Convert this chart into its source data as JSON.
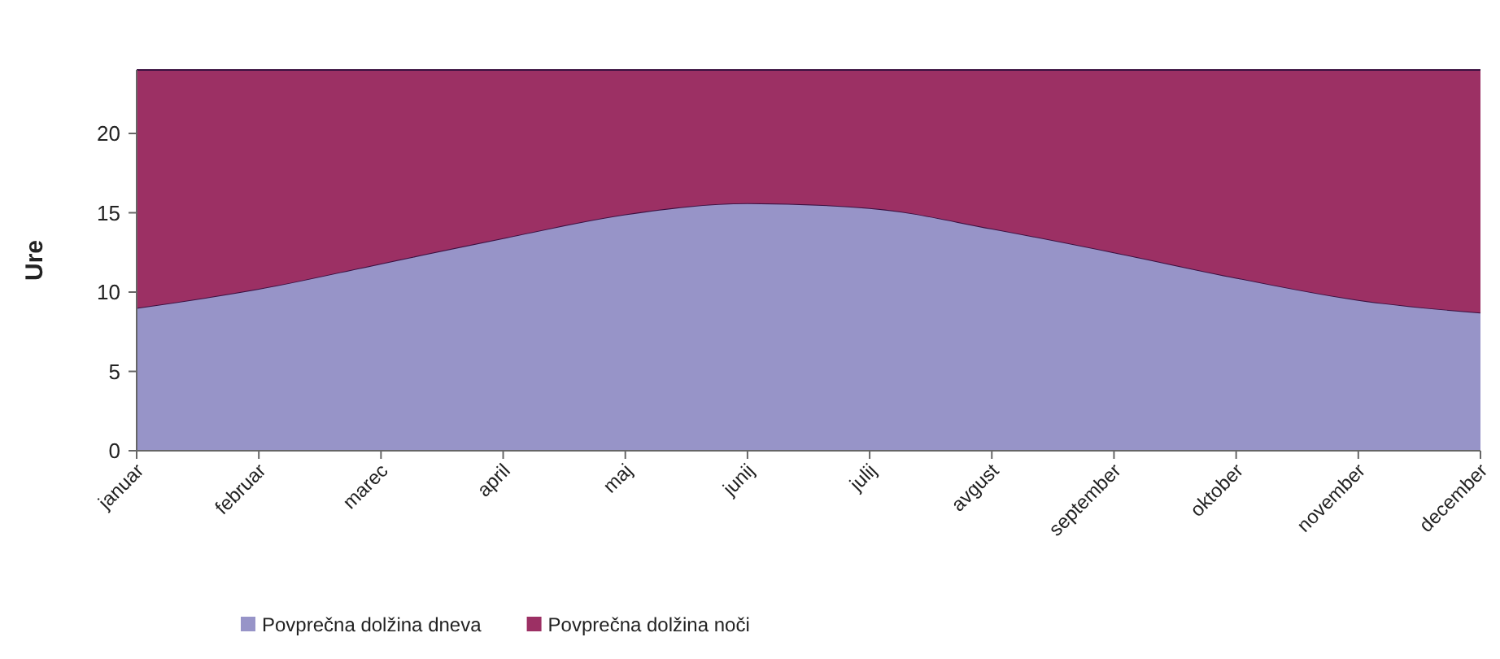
{
  "chart_data": {
    "type": "area",
    "stacked": true,
    "ylabel": "Ure",
    "categories": [
      "januar",
      "februar",
      "marec",
      "april",
      "maj",
      "junij",
      "julij",
      "avgust",
      "september",
      "oktober",
      "november",
      "december"
    ],
    "series": [
      {
        "name": "Povprečna dolžina dneva",
        "color": "#9794c8",
        "values": [
          9.0,
          10.2,
          11.8,
          13.4,
          14.9,
          15.6,
          15.3,
          14.0,
          12.5,
          10.9,
          9.5,
          8.7
        ]
      },
      {
        "name": "Povprečna dolžina noči",
        "color": "#9c3064",
        "values": [
          15.0,
          13.8,
          12.2,
          10.6,
          9.1,
          8.4,
          8.7,
          10.0,
          11.5,
          13.1,
          14.5,
          15.3
        ]
      }
    ],
    "ylim": [
      0,
      24
    ],
    "yticks": [
      0,
      5,
      10,
      15,
      20
    ],
    "grid": false,
    "legend": "bottom"
  }
}
